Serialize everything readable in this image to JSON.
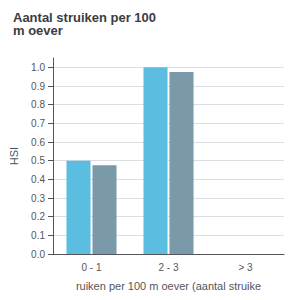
{
  "chart_data": {
    "type": "bar",
    "title": "Aantal struiken per 100\nm oever",
    "xlabel": "ruiken per 100 m oever (aantal struike",
    "ylabel": "HSI",
    "categories": [
      "0 - 1",
      "2 - 3",
      "> 3"
    ],
    "series": [
      {
        "color": "#5bbde0",
        "values": [
          0.5,
          1.0,
          0.0
        ]
      },
      {
        "color": "#7a9aaa",
        "values": [
          0.475,
          0.975,
          0.0
        ]
      }
    ],
    "ylim": [
      0.0,
      1.05
    ],
    "yticks": [
      {
        "value": 0.0,
        "label": "0.0"
      },
      0.1,
      0.2,
      0.3,
      0.4,
      0.5,
      0.6,
      0.7,
      0.8,
      0.9,
      {
        "value": 1.0,
        "label": "1.0"
      }
    ],
    "grid": true
  }
}
